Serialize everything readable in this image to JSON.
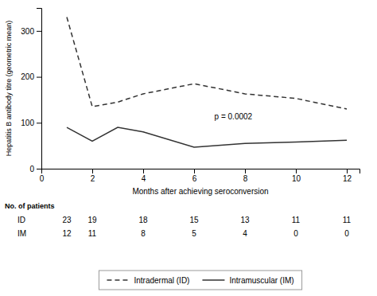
{
  "chart_data": {
    "type": "line",
    "xlabel": "Months after achieving seroconversion",
    "ylabel": "Hepatitis B antibody titre (geometric mean)",
    "x": [
      1,
      2,
      3,
      4,
      6,
      8,
      10,
      12
    ],
    "series": [
      {
        "name": "Intradermal (ID)",
        "color": "#333333",
        "line_style": "dashed",
        "values": [
          330,
          135,
          145,
          163,
          185,
          163,
          153,
          130
        ]
      },
      {
        "name": "Intramuscular (IM)",
        "color": "#333333",
        "line_style": "solid",
        "values": [
          90,
          60,
          90,
          80,
          47,
          55,
          58,
          62
        ]
      }
    ],
    "xlim": [
      0,
      12.5
    ],
    "ylim": [
      0,
      350
    ],
    "xticks": [
      0,
      2,
      4,
      6,
      8,
      10,
      12
    ],
    "yticks": [
      0,
      100,
      200,
      300
    ],
    "annotations": [
      {
        "text": "p = 0.0002",
        "x": 6.8,
        "y": 108
      }
    ],
    "table": {
      "label": "No. of patients",
      "x": [
        1,
        2,
        4,
        6,
        8,
        10,
        12
      ],
      "rows": [
        {
          "label": "ID",
          "values": [
            23,
            19,
            18,
            15,
            13,
            11,
            11
          ]
        },
        {
          "label": "IM",
          "values": [
            12,
            11,
            8,
            5,
            4,
            0,
            0
          ]
        }
      ]
    },
    "legend": "bottom"
  }
}
